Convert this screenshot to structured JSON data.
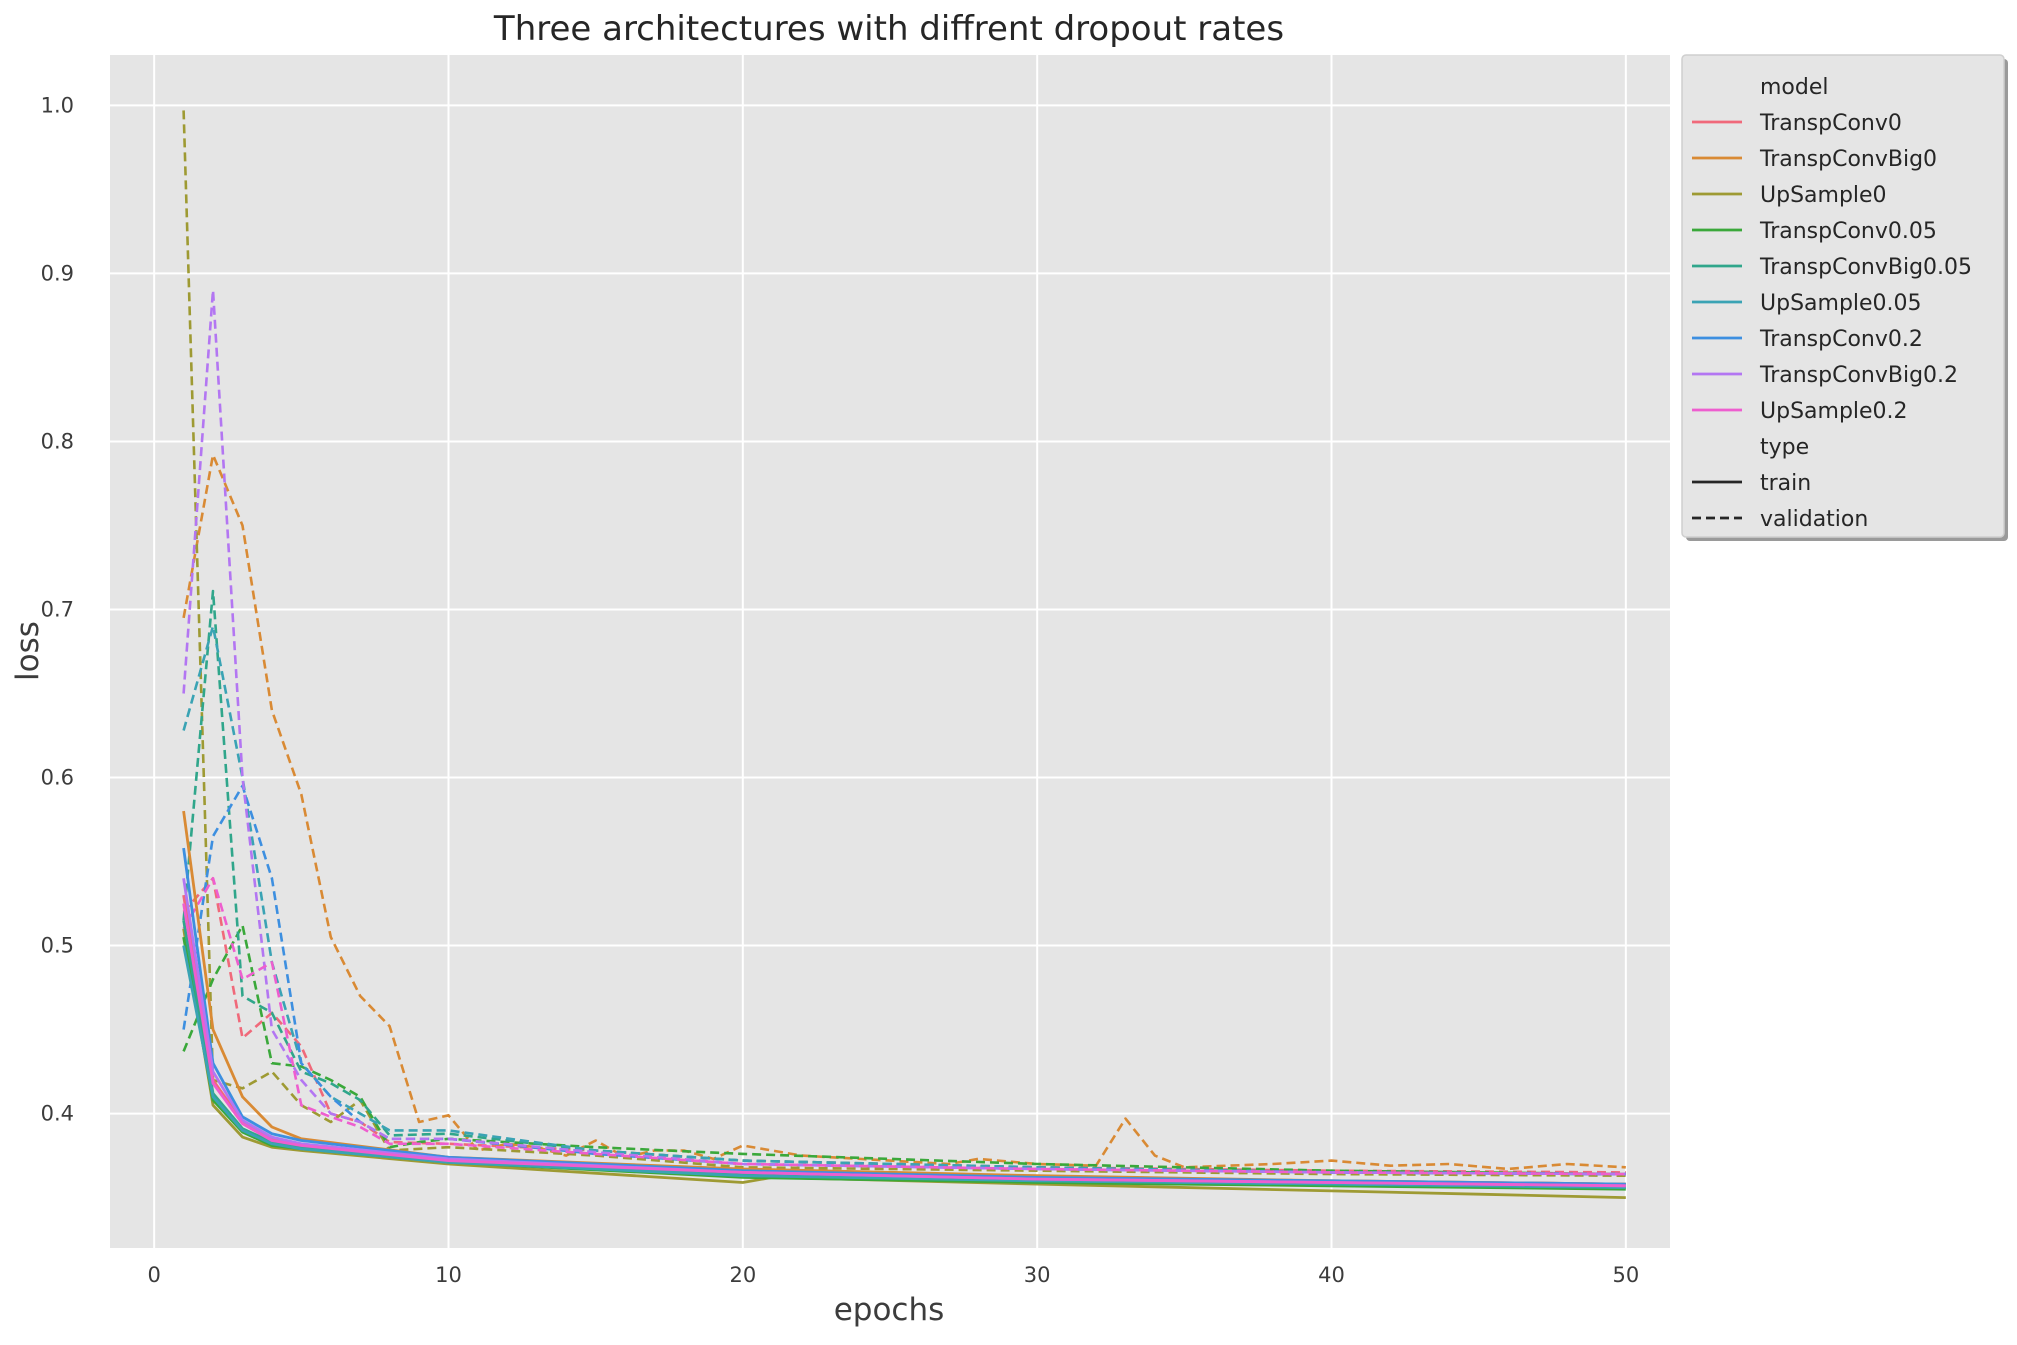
{
  "chart_data": {
    "type": "line",
    "title": "Three architectures with diffrent dropout rates",
    "xlabel": "epochs",
    "ylabel": "loss",
    "xlim": [
      -1.5,
      51.5
    ],
    "ylim": [
      0.32,
      1.03
    ],
    "xticks": [
      0,
      10,
      20,
      30,
      40,
      50
    ],
    "yticks": [
      0.4,
      0.5,
      0.6,
      0.7,
      0.8,
      0.9,
      1.0
    ],
    "xtick_labels": [
      "0",
      "10",
      "20",
      "30",
      "40",
      "50"
    ],
    "ytick_labels": [
      "0.4",
      "0.5",
      "0.6",
      "0.7",
      "0.8",
      "0.9",
      "1.0"
    ],
    "grid": true,
    "legend_position": "outside-right-top",
    "legend": {
      "model_header": "model",
      "type_header": "type",
      "types": [
        {
          "name": "train",
          "dash": "solid"
        },
        {
          "name": "validation",
          "dash": "dashed"
        }
      ]
    },
    "models": [
      {
        "name": "TranspConv0",
        "color": "#f0697a",
        "train": [
          [
            1,
            0.53
          ],
          [
            2,
            0.42
          ],
          [
            3,
            0.395
          ],
          [
            4,
            0.385
          ],
          [
            5,
            0.381
          ],
          [
            10,
            0.372
          ],
          [
            20,
            0.366
          ],
          [
            30,
            0.362
          ],
          [
            40,
            0.36
          ],
          [
            50,
            0.358
          ]
        ],
        "validation": [
          [
            1,
            0.52
          ],
          [
            2,
            0.54
          ],
          [
            3,
            0.445
          ],
          [
            4,
            0.46
          ],
          [
            5,
            0.44
          ],
          [
            6,
            0.4
          ],
          [
            7,
            0.395
          ],
          [
            8,
            0.383
          ],
          [
            10,
            0.382
          ],
          [
            15,
            0.378
          ],
          [
            20,
            0.372
          ],
          [
            30,
            0.368
          ],
          [
            40,
            0.366
          ],
          [
            50,
            0.365
          ]
        ]
      },
      {
        "name": "TranspConvBig0",
        "color": "#d98a34",
        "train": [
          [
            1,
            0.58
          ],
          [
            2,
            0.45
          ],
          [
            3,
            0.41
          ],
          [
            4,
            0.392
          ],
          [
            5,
            0.385
          ],
          [
            10,
            0.374
          ],
          [
            20,
            0.367
          ],
          [
            30,
            0.363
          ],
          [
            40,
            0.36
          ],
          [
            50,
            0.358
          ]
        ],
        "validation": [
          [
            1,
            0.695
          ],
          [
            2,
            0.792
          ],
          [
            3,
            0.75
          ],
          [
            4,
            0.64
          ],
          [
            5,
            0.59
          ],
          [
            6,
            0.505
          ],
          [
            7,
            0.47
          ],
          [
            8,
            0.452
          ],
          [
            9,
            0.395
          ],
          [
            10,
            0.399
          ],
          [
            11,
            0.378
          ],
          [
            12,
            0.382
          ],
          [
            13,
            0.38
          ],
          [
            14,
            0.375
          ],
          [
            15,
            0.384
          ],
          [
            16,
            0.374
          ],
          [
            17,
            0.378
          ],
          [
            18,
            0.378
          ],
          [
            19,
            0.373
          ],
          [
            20,
            0.381
          ],
          [
            22,
            0.375
          ],
          [
            25,
            0.372
          ],
          [
            27,
            0.37
          ],
          [
            28,
            0.373
          ],
          [
            30,
            0.37
          ],
          [
            32,
            0.369
          ],
          [
            33,
            0.397
          ],
          [
            34,
            0.375
          ],
          [
            35,
            0.368
          ],
          [
            38,
            0.37
          ],
          [
            40,
            0.372
          ],
          [
            42,
            0.369
          ],
          [
            44,
            0.37
          ],
          [
            46,
            0.367
          ],
          [
            48,
            0.37
          ],
          [
            50,
            0.368
          ]
        ]
      },
      {
        "name": "UpSample0",
        "color": "#9e9a33",
        "train": [
          [
            1,
            0.51
          ],
          [
            2,
            0.405
          ],
          [
            3,
            0.386
          ],
          [
            4,
            0.38
          ],
          [
            5,
            0.378
          ],
          [
            10,
            0.37
          ],
          [
            20,
            0.359
          ],
          [
            21,
            0.362
          ],
          [
            30,
            0.358
          ],
          [
            40,
            0.354
          ],
          [
            45,
            0.352
          ],
          [
            50,
            0.35
          ]
        ],
        "validation": [
          [
            1,
            0.997
          ],
          [
            2,
            0.42
          ],
          [
            3,
            0.415
          ],
          [
            4,
            0.425
          ],
          [
            5,
            0.405
          ],
          [
            6,
            0.395
          ],
          [
            7,
            0.408
          ],
          [
            8,
            0.378
          ],
          [
            10,
            0.38
          ],
          [
            15,
            0.375
          ],
          [
            20,
            0.368
          ],
          [
            30,
            0.366
          ],
          [
            40,
            0.364
          ],
          [
            50,
            0.363
          ]
        ]
      },
      {
        "name": "TranspConv0.05",
        "color": "#3aa83a",
        "train": [
          [
            1,
            0.505
          ],
          [
            2,
            0.408
          ],
          [
            3,
            0.389
          ],
          [
            4,
            0.381
          ],
          [
            5,
            0.379
          ],
          [
            10,
            0.371
          ],
          [
            20,
            0.362
          ],
          [
            30,
            0.359
          ],
          [
            40,
            0.357
          ],
          [
            50,
            0.355
          ]
        ],
        "validation": [
          [
            1,
            0.437
          ],
          [
            2,
            0.48
          ],
          [
            3,
            0.512
          ],
          [
            4,
            0.43
          ],
          [
            5,
            0.428
          ],
          [
            6,
            0.42
          ],
          [
            7,
            0.41
          ],
          [
            8,
            0.38
          ],
          [
            9,
            0.383
          ],
          [
            10,
            0.385
          ],
          [
            15,
            0.38
          ],
          [
            20,
            0.376
          ],
          [
            25,
            0.373
          ],
          [
            30,
            0.37
          ],
          [
            40,
            0.366
          ],
          [
            50,
            0.364
          ]
        ]
      },
      {
        "name": "TranspConvBig0.05",
        "color": "#30a68b",
        "train": [
          [
            1,
            0.515
          ],
          [
            2,
            0.412
          ],
          [
            3,
            0.391
          ],
          [
            4,
            0.383
          ],
          [
            5,
            0.38
          ],
          [
            10,
            0.372
          ],
          [
            20,
            0.364
          ],
          [
            30,
            0.36
          ],
          [
            40,
            0.358
          ],
          [
            50,
            0.356
          ]
        ],
        "validation": [
          [
            1,
            0.515
          ],
          [
            2,
            0.711
          ],
          [
            3,
            0.47
          ],
          [
            4,
            0.46
          ],
          [
            5,
            0.425
          ],
          [
            6,
            0.418
          ],
          [
            7,
            0.408
          ],
          [
            8,
            0.387
          ],
          [
            10,
            0.388
          ],
          [
            15,
            0.378
          ],
          [
            20,
            0.372
          ],
          [
            30,
            0.368
          ],
          [
            40,
            0.365
          ],
          [
            50,
            0.364
          ]
        ]
      },
      {
        "name": "UpSample0.05",
        "color": "#3aa3b4",
        "train": [
          [
            1,
            0.5
          ],
          [
            2,
            0.41
          ],
          [
            3,
            0.39
          ],
          [
            4,
            0.382
          ],
          [
            5,
            0.379
          ],
          [
            10,
            0.371
          ],
          [
            20,
            0.363
          ],
          [
            30,
            0.36
          ],
          [
            40,
            0.358
          ],
          [
            50,
            0.356
          ]
        ],
        "validation": [
          [
            1,
            0.628
          ],
          [
            2,
            0.69
          ],
          [
            3,
            0.6
          ],
          [
            4,
            0.49
          ],
          [
            5,
            0.43
          ],
          [
            6,
            0.41
          ],
          [
            7,
            0.4
          ],
          [
            8,
            0.39
          ],
          [
            10,
            0.39
          ],
          [
            15,
            0.378
          ],
          [
            20,
            0.372
          ],
          [
            30,
            0.368
          ],
          [
            40,
            0.365
          ],
          [
            50,
            0.364
          ]
        ]
      },
      {
        "name": "TranspConv0.2",
        "color": "#3d8fe0",
        "train": [
          [
            1,
            0.558
          ],
          [
            2,
            0.43
          ],
          [
            3,
            0.398
          ],
          [
            4,
            0.388
          ],
          [
            5,
            0.384
          ],
          [
            10,
            0.374
          ],
          [
            20,
            0.366
          ],
          [
            30,
            0.362
          ],
          [
            40,
            0.36
          ],
          [
            50,
            0.358
          ]
        ],
        "validation": [
          [
            1,
            0.45
          ],
          [
            2,
            0.565
          ],
          [
            3,
            0.595
          ],
          [
            4,
            0.54
          ],
          [
            5,
            0.43
          ],
          [
            6,
            0.41
          ],
          [
            7,
            0.395
          ],
          [
            8,
            0.385
          ],
          [
            10,
            0.385
          ],
          [
            15,
            0.376
          ],
          [
            20,
            0.37
          ],
          [
            30,
            0.367
          ],
          [
            40,
            0.365
          ],
          [
            50,
            0.364
          ]
        ]
      },
      {
        "name": "TranspConvBig0.2",
        "color": "#b376f2",
        "train": [
          [
            1,
            0.54
          ],
          [
            2,
            0.425
          ],
          [
            3,
            0.396
          ],
          [
            4,
            0.386
          ],
          [
            5,
            0.382
          ],
          [
            10,
            0.373
          ],
          [
            20,
            0.365
          ],
          [
            30,
            0.361
          ],
          [
            40,
            0.359
          ],
          [
            50,
            0.357
          ]
        ],
        "validation": [
          [
            1,
            0.65
          ],
          [
            2,
            0.89
          ],
          [
            3,
            0.6
          ],
          [
            4,
            0.45
          ],
          [
            5,
            0.42
          ],
          [
            6,
            0.4
          ],
          [
            7,
            0.395
          ],
          [
            8,
            0.385
          ],
          [
            10,
            0.385
          ],
          [
            15,
            0.377
          ],
          [
            20,
            0.37
          ],
          [
            30,
            0.367
          ],
          [
            40,
            0.365
          ],
          [
            50,
            0.364
          ]
        ]
      },
      {
        "name": "UpSample0.2",
        "color": "#ee5ecf",
        "train": [
          [
            1,
            0.525
          ],
          [
            2,
            0.418
          ],
          [
            3,
            0.394
          ],
          [
            4,
            0.384
          ],
          [
            5,
            0.381
          ],
          [
            10,
            0.372
          ],
          [
            20,
            0.365
          ],
          [
            30,
            0.361
          ],
          [
            40,
            0.359
          ],
          [
            50,
            0.357
          ]
        ],
        "validation": [
          [
            1,
            0.51
          ],
          [
            2,
            0.54
          ],
          [
            3,
            0.48
          ],
          [
            4,
            0.49
          ],
          [
            5,
            0.405
          ],
          [
            6,
            0.398
          ],
          [
            7,
            0.392
          ],
          [
            8,
            0.382
          ],
          [
            10,
            0.382
          ],
          [
            15,
            0.376
          ],
          [
            20,
            0.37
          ],
          [
            30,
            0.367
          ],
          [
            40,
            0.365
          ],
          [
            50,
            0.364
          ]
        ]
      }
    ]
  }
}
